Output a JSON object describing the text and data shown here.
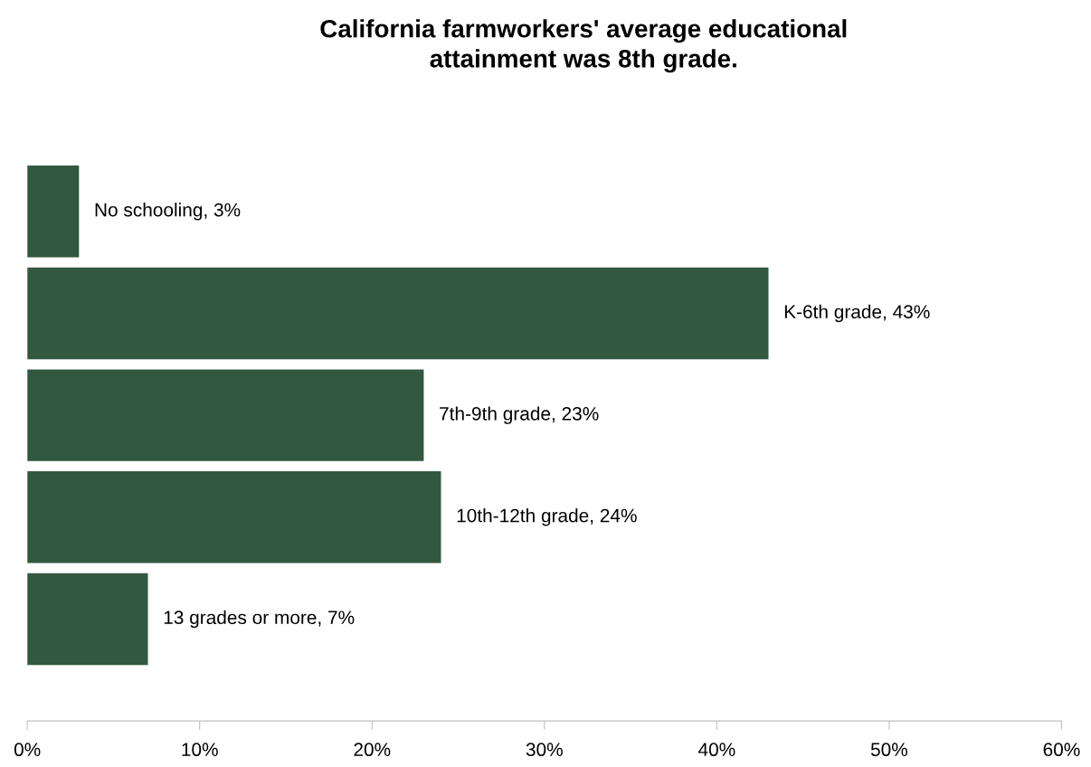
{
  "chart_data": {
    "type": "bar",
    "orientation": "horizontal",
    "title": "California farmworkers' average educational\nattainment was 8th grade.",
    "categories": [
      null,
      null,
      null,
      null,
      null
    ],
    "values": [
      3,
      43,
      23,
      24,
      7
    ],
    "value_labels": [
      "No schooling, 3%",
      "K-6th grade, 43%",
      "7th-9th grade, 23%",
      "10th-12th grade, 24%",
      "13 grades or more, 7%"
    ],
    "color": "#335840",
    "xlim": [
      0,
      60
    ],
    "xticks": [
      {
        "value": 0,
        "label": "0%"
      },
      {
        "value": 10,
        "label": "10%"
      },
      {
        "value": 20,
        "label": "20%"
      },
      {
        "value": 30,
        "label": "30%"
      },
      {
        "value": 40,
        "label": "40%"
      },
      {
        "value": 50,
        "label": "50%"
      },
      {
        "value": 60,
        "label": "60%"
      }
    ],
    "tick_labels": "x",
    "grid": false,
    "legend": false
  }
}
